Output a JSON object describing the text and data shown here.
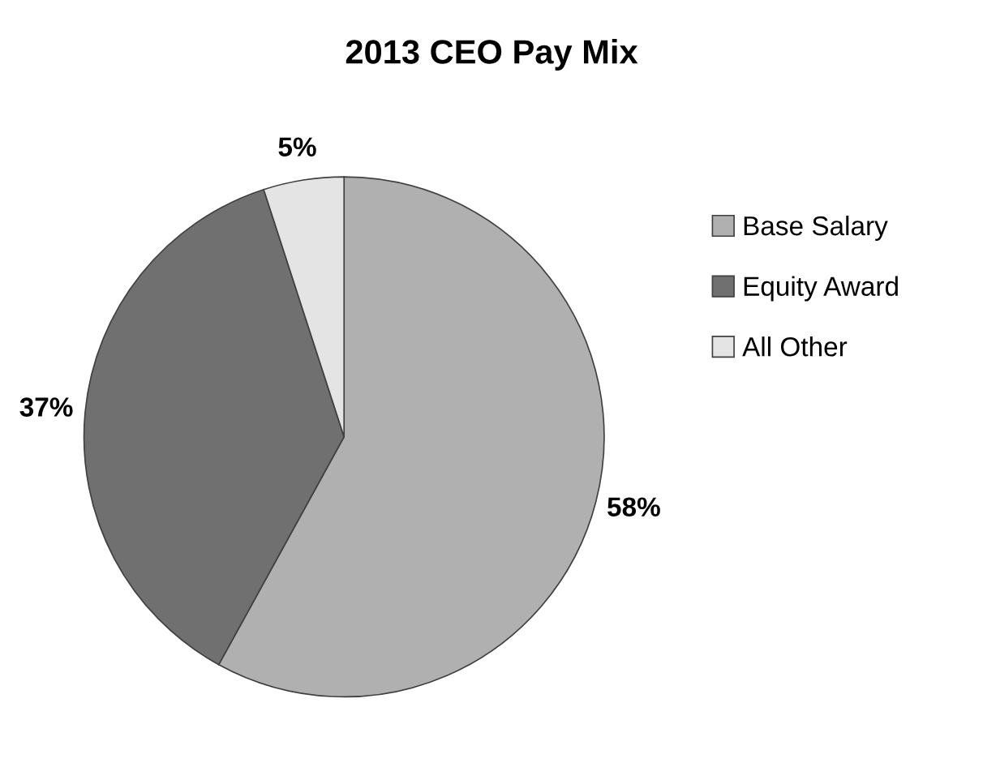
{
  "chart_data": {
    "type": "pie",
    "title": "2013 CEO Pay Mix",
    "categories": [
      "Base Salary",
      "Equity Award",
      "All Other"
    ],
    "values": [
      58,
      37,
      5
    ],
    "colors": [
      "#b0b0b0",
      "#707070",
      "#e4e4e4"
    ],
    "value_labels": [
      "58%",
      "37%",
      "5%"
    ],
    "legend": "right"
  }
}
